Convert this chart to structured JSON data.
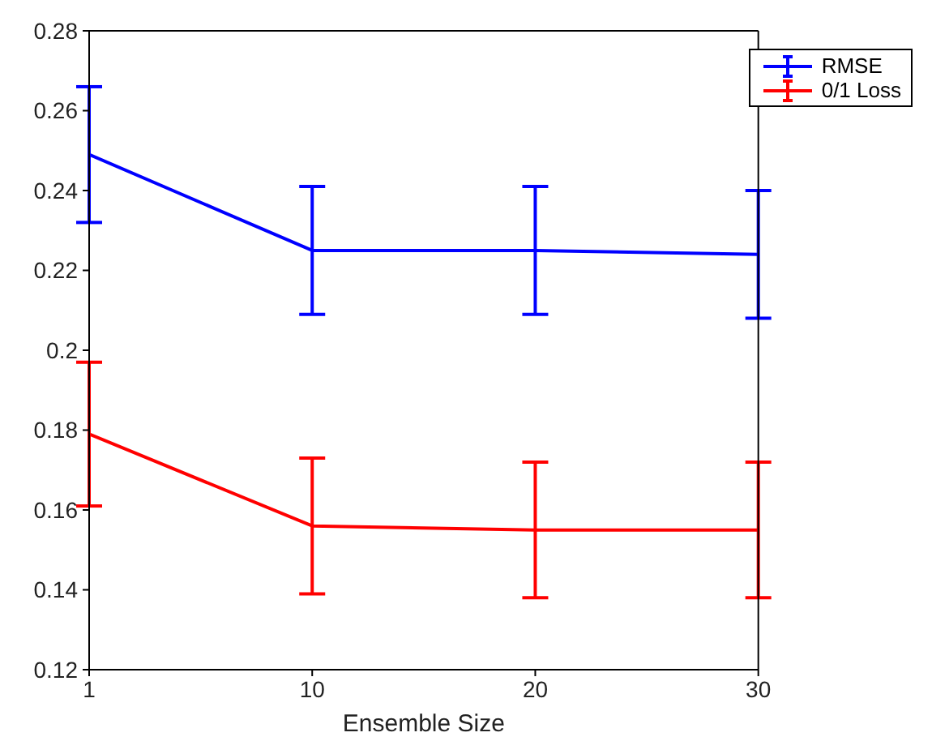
{
  "chart_data": {
    "type": "line",
    "xlabel": "Ensemble Size",
    "categories": [
      "1",
      "10",
      "20",
      "30"
    ],
    "series": [
      {
        "name": "RMSE",
        "color": "#0000ff",
        "values": [
          0.249,
          0.225,
          0.225,
          0.224
        ],
        "errors": [
          [
            0.232,
            0.266
          ],
          [
            0.209,
            0.241
          ],
          [
            0.209,
            0.241
          ],
          [
            0.208,
            0.24
          ]
        ]
      },
      {
        "name": "0/1 Loss",
        "color": "#ff0000",
        "values": [
          0.179,
          0.156,
          0.155,
          0.155
        ],
        "errors": [
          [
            0.161,
            0.197
          ],
          [
            0.139,
            0.173
          ],
          [
            0.138,
            0.172
          ],
          [
            0.138,
            0.172
          ]
        ]
      }
    ],
    "ylim": [
      0.12,
      0.28
    ],
    "yticks": [
      0.12,
      0.14,
      0.16,
      0.18,
      0.2,
      0.22,
      0.24,
      0.26,
      0.28
    ],
    "grid": false,
    "legend": "top right",
    "marker": "none",
    "line_style": "solid"
  }
}
